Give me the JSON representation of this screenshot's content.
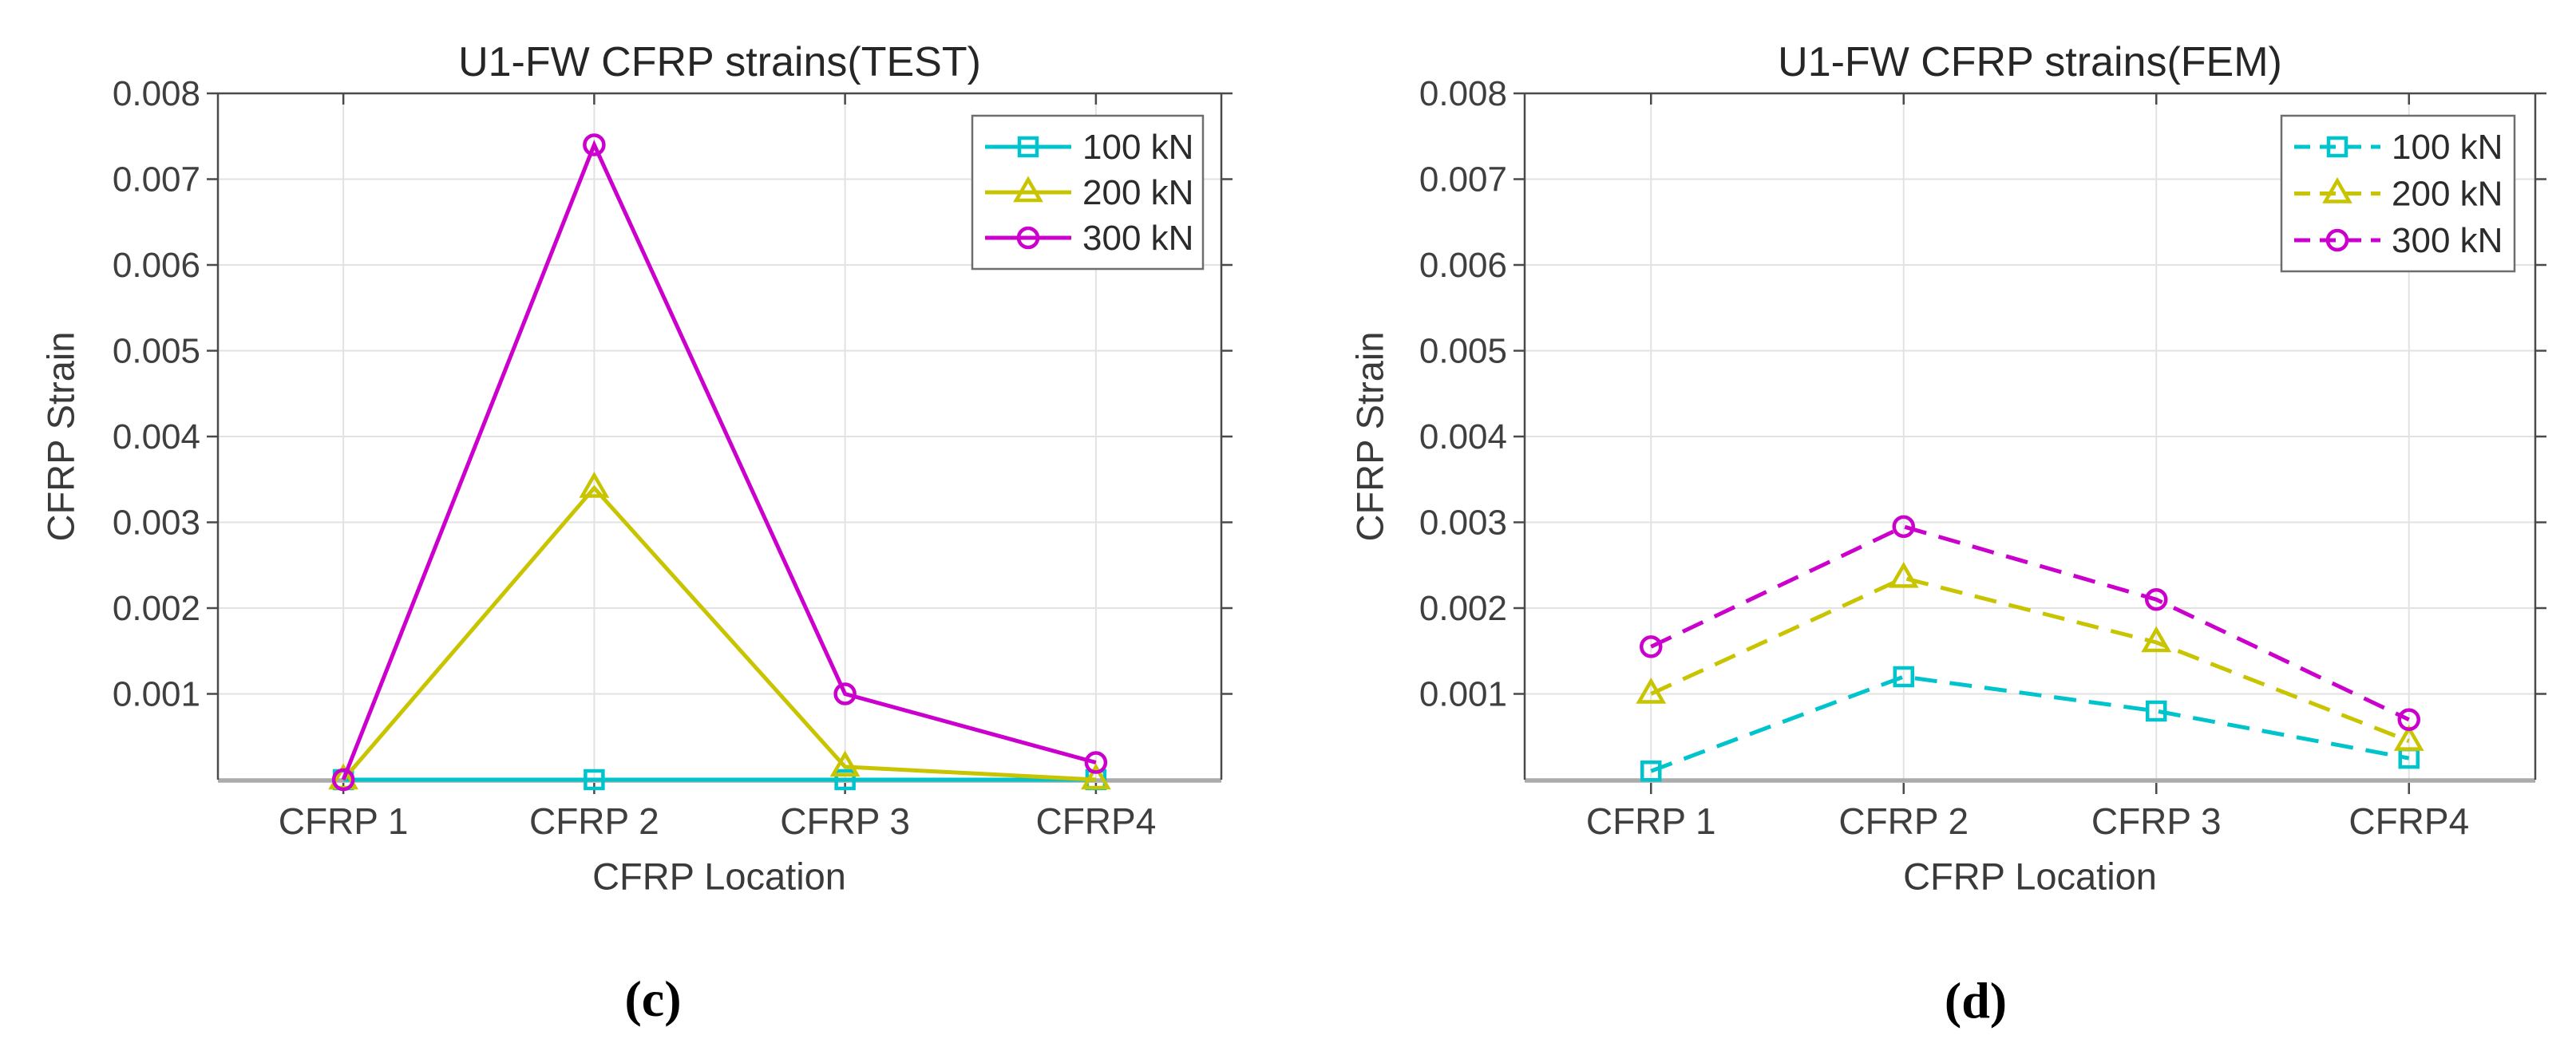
{
  "chart_data": [
    {
      "type": "line",
      "panel": "c",
      "title": "U1-FW CFRP strains(TEST)",
      "xlabel": "CFRP Location",
      "ylabel": "CFRP Strain",
      "caption": "(c)",
      "line_style": "solid",
      "grid": true,
      "legend_position": "top-right",
      "categories": [
        "CFRP 1",
        "CFRP 2",
        "CFRP 3",
        "CFRP4"
      ],
      "ylim": [
        0,
        0.008
      ],
      "y_ticks": [
        "0.001",
        "0.002",
        "0.003",
        "0.004",
        "0.005",
        "0.006",
        "0.007",
        "0.008"
      ],
      "series": [
        {
          "name": "100 kN",
          "color": "#00c4cc",
          "marker": "square",
          "values": [
            0,
            0,
            0,
            0
          ]
        },
        {
          "name": "200 kN",
          "color": "#c9c400",
          "marker": "triangle",
          "values": [
            0,
            0.0034,
            0.00015,
            0
          ]
        },
        {
          "name": "300 kN",
          "color": "#cc00cc",
          "marker": "circle",
          "values": [
            0,
            0.0074,
            0.001,
            0.0002
          ]
        }
      ]
    },
    {
      "type": "line",
      "panel": "d",
      "title": "U1-FW CFRP strains(FEM)",
      "xlabel": "CFRP Location",
      "ylabel": "CFRP Strain",
      "caption": "(d)",
      "line_style": "dashed",
      "grid": true,
      "legend_position": "top-right",
      "categories": [
        "CFRP 1",
        "CFRP 2",
        "CFRP 3",
        "CFRP4"
      ],
      "ylim": [
        0,
        0.008
      ],
      "y_ticks": [
        "0.001",
        "0.002",
        "0.003",
        "0.004",
        "0.005",
        "0.006",
        "0.007",
        "0.008"
      ],
      "series": [
        {
          "name": "100 kN",
          "color": "#00c4cc",
          "marker": "square",
          "values": [
            0.0001,
            0.0012,
            0.0008,
            0.00025
          ]
        },
        {
          "name": "200 kN",
          "color": "#c9c400",
          "marker": "triangle",
          "values": [
            0.001,
            0.00235,
            0.0016,
            0.00045
          ]
        },
        {
          "name": "300 kN",
          "color": "#cc00cc",
          "marker": "circle",
          "values": [
            0.00155,
            0.00295,
            0.0021,
            0.0007
          ]
        }
      ]
    }
  ]
}
